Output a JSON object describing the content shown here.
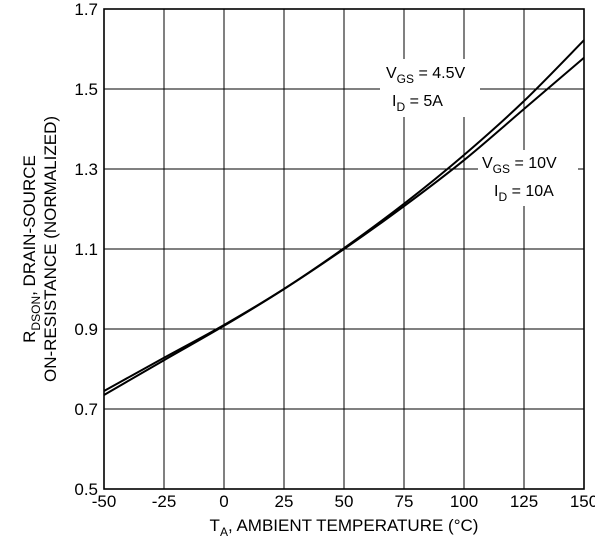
{
  "chart_data": {
    "type": "line",
    "xlabel": {
      "main": "T",
      "sub": "A",
      "rest": ", AMBIENT TEMPERATURE (°C)"
    },
    "ylabel": {
      "line1_main": "R",
      "line1_sub": "DSON",
      "line1_rest": ", DRAIN-SOURCE",
      "line2": "ON-RESISTANCE (NORMALIZED)"
    },
    "xlim": [
      -50,
      150
    ],
    "ylim": [
      0.5,
      1.7
    ],
    "xticks": [
      "-50",
      "-25",
      "0",
      "25",
      "50",
      "75",
      "100",
      "125",
      "150"
    ],
    "yticks": [
      "0.5",
      "0.7",
      "0.9",
      "1.1",
      "1.3",
      "1.5",
      "1.7"
    ],
    "grid": true,
    "series": [
      {
        "annotation": {
          "v_main": "V",
          "v_sub": "GS",
          "v_rest": " = 4.5V",
          "i_main": "I",
          "i_sub": "D",
          "i_rest": " = 5A"
        },
        "x": [
          -50,
          -25,
          0,
          25,
          50,
          75,
          100,
          125,
          150
        ],
        "y": [
          0.735,
          0.822,
          0.908,
          1.0,
          1.102,
          1.213,
          1.335,
          1.47,
          1.622
        ]
      },
      {
        "annotation": {
          "v_main": "V",
          "v_sub": "GS",
          "v_rest": " = 10V",
          "i_main": "I",
          "i_sub": "D",
          "i_rest": " = 10A"
        },
        "x": [
          -50,
          -25,
          0,
          25,
          50,
          75,
          100,
          125,
          150
        ],
        "y": [
          0.745,
          0.828,
          0.91,
          1.0,
          1.1,
          1.207,
          1.322,
          1.45,
          1.578
        ]
      }
    ]
  }
}
